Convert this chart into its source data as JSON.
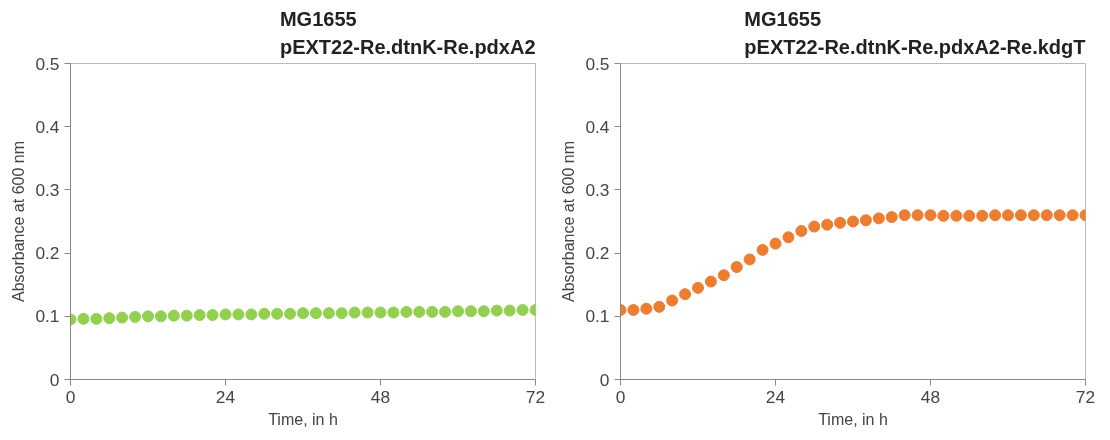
{
  "chart_data": [
    {
      "type": "scatter",
      "title": "MG1655\npEXT22-Re.dtnK-Re.pdxA2",
      "xlabel": "Time, in h",
      "ylabel": "Absorbance at 600 nm",
      "marker": "circle",
      "grid": false,
      "x": [
        0,
        2,
        4,
        6,
        8,
        10,
        12,
        14,
        16,
        18,
        20,
        22,
        24,
        26,
        28,
        30,
        32,
        34,
        36,
        38,
        40,
        42,
        44,
        46,
        48,
        50,
        52,
        54,
        56,
        58,
        60,
        62,
        64,
        66,
        68,
        70,
        72
      ],
      "series": [
        {
          "color": "#92d050",
          "values": [
            0.095,
            0.096,
            0.096,
            0.097,
            0.098,
            0.099,
            0.1,
            0.1,
            0.101,
            0.101,
            0.102,
            0.102,
            0.103,
            0.103,
            0.103,
            0.104,
            0.104,
            0.104,
            0.105,
            0.105,
            0.105,
            0.105,
            0.106,
            0.106,
            0.106,
            0.106,
            0.107,
            0.107,
            0.107,
            0.107,
            0.108,
            0.108,
            0.108,
            0.109,
            0.109,
            0.11,
            0.11
          ]
        }
      ],
      "xlim": [
        0,
        72
      ],
      "xticks": [
        0,
        24,
        48,
        72
      ],
      "ylim": [
        0,
        0.5
      ],
      "yticks": [
        0,
        0.1,
        0.2,
        0.3,
        0.4,
        0.5
      ]
    },
    {
      "type": "scatter",
      "title": "MG1655\npEXT22-Re.dtnK-Re.pdxA2-Re.kdgT",
      "xlabel": "Time, in h",
      "ylabel": "Absorbance at 600 nm",
      "marker": "circle",
      "grid": false,
      "x": [
        0,
        2,
        4,
        6,
        8,
        10,
        12,
        14,
        16,
        18,
        20,
        22,
        24,
        26,
        28,
        30,
        32,
        34,
        36,
        38,
        40,
        42,
        44,
        46,
        48,
        50,
        52,
        54,
        56,
        58,
        60,
        62,
        64,
        66,
        68,
        70,
        72
      ],
      "series": [
        {
          "color": "#ed7d31",
          "values": [
            0.11,
            0.11,
            0.112,
            0.115,
            0.125,
            0.135,
            0.145,
            0.155,
            0.165,
            0.178,
            0.19,
            0.205,
            0.215,
            0.225,
            0.235,
            0.242,
            0.245,
            0.248,
            0.25,
            0.252,
            0.255,
            0.257,
            0.26,
            0.26,
            0.26,
            0.259,
            0.259,
            0.259,
            0.259,
            0.26,
            0.26,
            0.26,
            0.26,
            0.26,
            0.26,
            0.26,
            0.26
          ]
        }
      ],
      "xlim": [
        0,
        72
      ],
      "xticks": [
        0,
        24,
        48,
        72
      ],
      "ylim": [
        0,
        0.5
      ],
      "yticks": [
        0,
        0.1,
        0.2,
        0.3,
        0.4,
        0.5
      ]
    }
  ]
}
